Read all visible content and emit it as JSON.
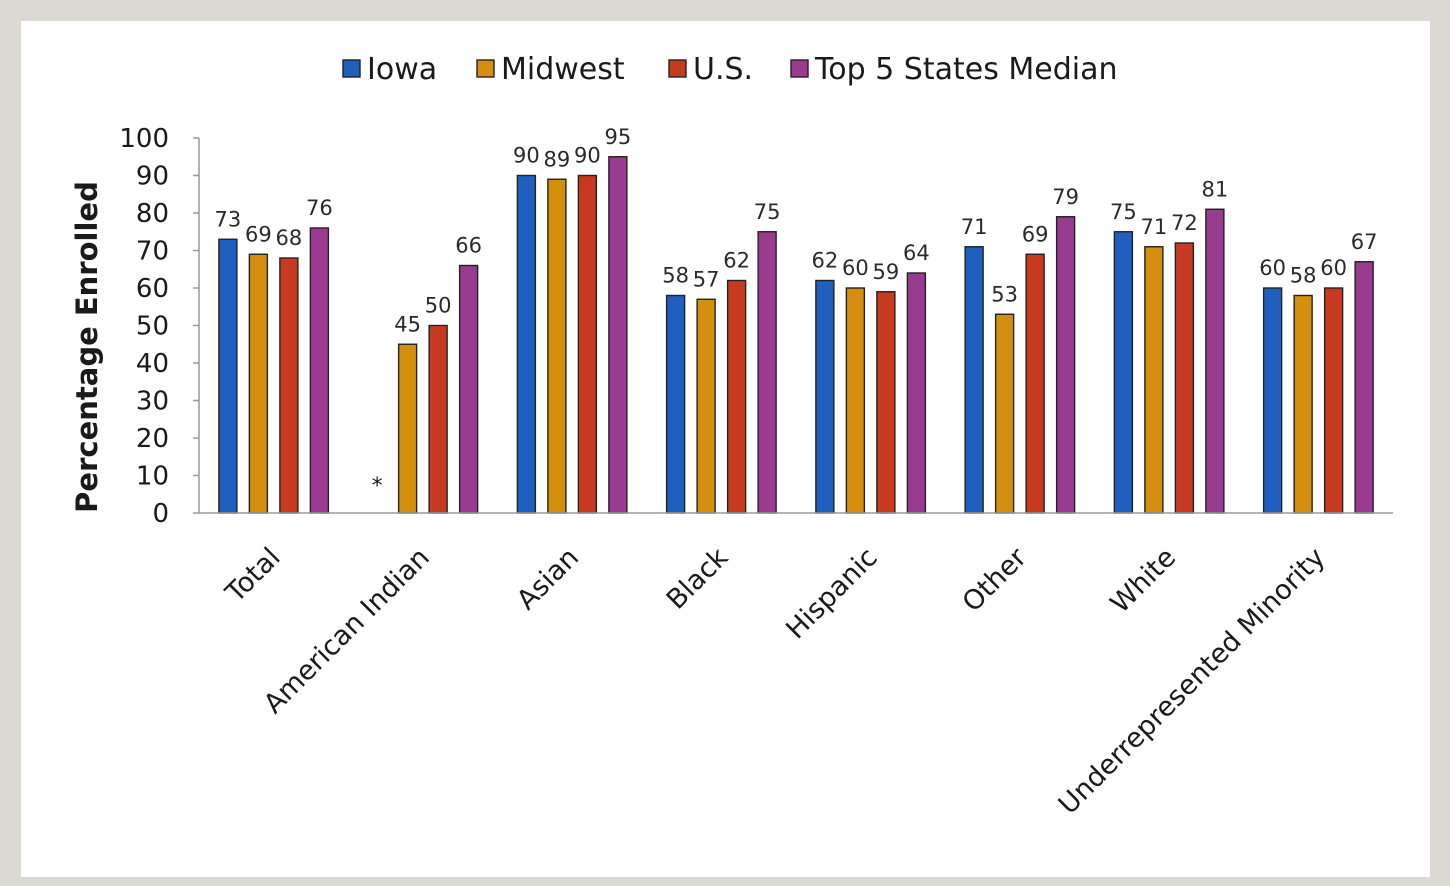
{
  "chart_data": {
    "type": "bar",
    "ylabel": "Percentage Enrolled",
    "xlabel": "",
    "ylim": [
      0,
      100
    ],
    "yticks": [
      0,
      10,
      20,
      30,
      40,
      50,
      60,
      70,
      80,
      90,
      100
    ],
    "grid": false,
    "legend_position": "top",
    "categories": [
      "Total",
      "American Indian",
      "Asian",
      "Black",
      "Hispanic",
      "Other",
      "White",
      "Underrepresented Minority"
    ],
    "series": [
      {
        "name": "Iowa",
        "color": "#1f5fbf",
        "values": [
          73,
          null,
          90,
          58,
          62,
          71,
          75,
          60
        ],
        "labels": [
          "73",
          "*",
          "90",
          "58",
          "62",
          "71",
          "75",
          "60"
        ]
      },
      {
        "name": "Midwest",
        "color": "#d58f0e",
        "values": [
          69,
          45,
          89,
          57,
          60,
          53,
          71,
          58
        ],
        "labels": [
          "69",
          "45",
          "89",
          "57",
          "60",
          "53",
          "71",
          "58"
        ]
      },
      {
        "name": "U.S.",
        "color": "#c83a20",
        "values": [
          68,
          50,
          90,
          62,
          59,
          69,
          72,
          60
        ],
        "labels": [
          "68",
          "50",
          "90",
          "62",
          "59",
          "69",
          "72",
          "60"
        ]
      },
      {
        "name": "Top 5 States Median",
        "color": "#9b3a91",
        "values": [
          76,
          66,
          95,
          75,
          64,
          79,
          81,
          67
        ],
        "labels": [
          "76",
          "66",
          "95",
          "75",
          "64",
          "79",
          "81",
          "67"
        ]
      }
    ]
  }
}
